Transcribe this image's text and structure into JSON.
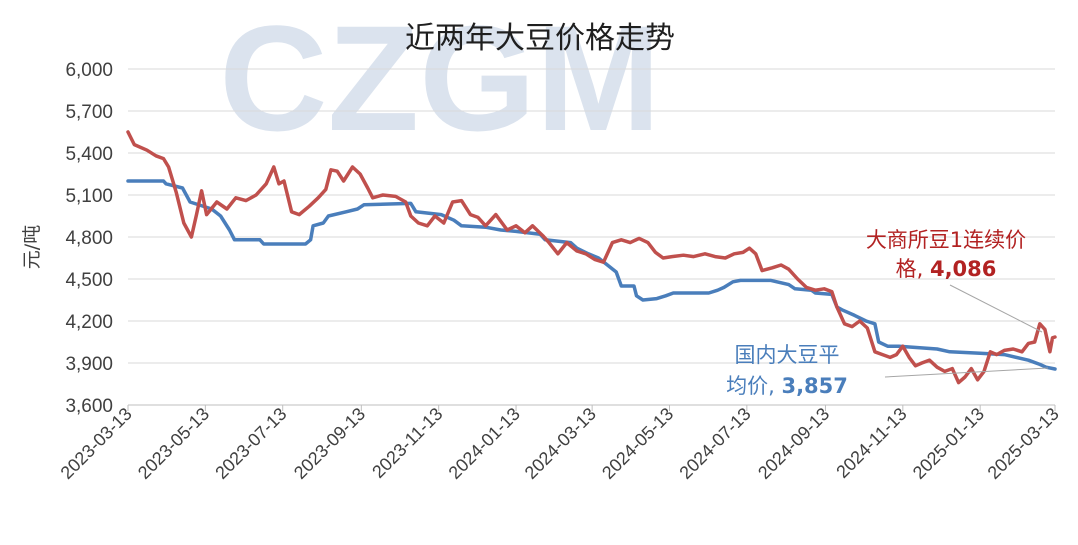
{
  "watermark": "CZGM",
  "chart_data": {
    "type": "line",
    "title": "近两年大豆价格走势",
    "ylabel": "元/吨",
    "ylim": [
      3600,
      6000
    ],
    "yticks": [
      "3,600",
      "3,900",
      "4,200",
      "4,500",
      "4,800",
      "5,100",
      "5,400",
      "5,700",
      "6,000"
    ],
    "grid": true,
    "x_ticks": [
      "2023-03-13",
      "2023-05-13",
      "2023-07-13",
      "2023-09-13",
      "2023-11-13",
      "2024-01-13",
      "2024-03-13",
      "2024-05-13",
      "2024-07-13",
      "2024-09-13",
      "2024-11-13",
      "2025-01-13",
      "2025-03-13"
    ],
    "x_range": [
      "2023-03-13",
      "2025-03-13"
    ],
    "annotations": [
      {
        "line1": "大商所豆1连续价",
        "line2_prefix": "格, ",
        "value_text": "4,086",
        "color": "#b22222"
      },
      {
        "line1": "国内大豆平",
        "line2_prefix": "均价, ",
        "value_text": "3,857",
        "color": "#4a7ebb"
      }
    ],
    "series": [
      {
        "color": "#4a7ebb",
        "points": [
          [
            "2023-03-13",
            5200
          ],
          [
            "2023-04-10",
            5200
          ],
          [
            "2023-04-12",
            5180
          ],
          [
            "2023-04-25",
            5150
          ],
          [
            "2023-05-01",
            5050
          ],
          [
            "2023-05-18",
            5000
          ],
          [
            "2023-05-25",
            4950
          ],
          [
            "2023-06-01",
            4850
          ],
          [
            "2023-06-05",
            4780
          ],
          [
            "2023-06-25",
            4780
          ],
          [
            "2023-06-28",
            4750
          ],
          [
            "2023-07-31",
            4750
          ],
          [
            "2023-08-04",
            4780
          ],
          [
            "2023-08-06",
            4880
          ],
          [
            "2023-08-14",
            4900
          ],
          [
            "2023-08-18",
            4950
          ],
          [
            "2023-09-01",
            4980
          ],
          [
            "2023-09-10",
            5000
          ],
          [
            "2023-09-15",
            5030
          ],
          [
            "2023-10-22",
            5040
          ],
          [
            "2023-10-26",
            4980
          ],
          [
            "2023-11-15",
            4960
          ],
          [
            "2023-11-25",
            4920
          ],
          [
            "2023-12-01",
            4880
          ],
          [
            "2023-12-20",
            4870
          ],
          [
            "2024-01-01",
            4850
          ],
          [
            "2024-01-13",
            4840
          ],
          [
            "2024-02-01",
            4820
          ],
          [
            "2024-02-05",
            4780
          ],
          [
            "2024-02-25",
            4760
          ],
          [
            "2024-03-01",
            4720
          ],
          [
            "2024-03-10",
            4680
          ],
          [
            "2024-03-18",
            4650
          ],
          [
            "2024-03-25",
            4600
          ],
          [
            "2024-04-01",
            4550
          ],
          [
            "2024-04-05",
            4450
          ],
          [
            "2024-04-15",
            4450
          ],
          [
            "2024-04-17",
            4380
          ],
          [
            "2024-04-22",
            4350
          ],
          [
            "2024-05-03",
            4360
          ],
          [
            "2024-05-10",
            4380
          ],
          [
            "2024-05-16",
            4400
          ],
          [
            "2024-06-13",
            4400
          ],
          [
            "2024-06-20",
            4420
          ],
          [
            "2024-06-25",
            4440
          ],
          [
            "2024-07-02",
            4480
          ],
          [
            "2024-07-08",
            4490
          ],
          [
            "2024-08-01",
            4490
          ],
          [
            "2024-08-15",
            4460
          ],
          [
            "2024-08-20",
            4430
          ],
          [
            "2024-09-02",
            4420
          ],
          [
            "2024-09-05",
            4400
          ],
          [
            "2024-09-18",
            4390
          ],
          [
            "2024-09-22",
            4300
          ],
          [
            "2024-09-26",
            4280
          ],
          [
            "2024-10-06",
            4240
          ],
          [
            "2024-10-15",
            4200
          ],
          [
            "2024-10-22",
            4180
          ],
          [
            "2024-10-25",
            4050
          ],
          [
            "2024-11-01",
            4020
          ],
          [
            "2024-11-10",
            4020
          ],
          [
            "2024-11-25",
            4010
          ],
          [
            "2024-12-10",
            4000
          ],
          [
            "2024-12-20",
            3980
          ],
          [
            "2025-01-13",
            3970
          ],
          [
            "2025-02-01",
            3960
          ],
          [
            "2025-02-20",
            3920
          ],
          [
            "2025-03-01",
            3890
          ],
          [
            "2025-03-06",
            3870
          ],
          [
            "2025-03-13",
            3857
          ]
        ]
      },
      {
        "color": "#c0504d",
        "points": [
          [
            "2023-03-13",
            5550
          ],
          [
            "2023-03-18",
            5460
          ],
          [
            "2023-03-28",
            5420
          ],
          [
            "2023-04-04",
            5380
          ],
          [
            "2023-04-10",
            5360
          ],
          [
            "2023-04-14",
            5300
          ],
          [
            "2023-04-20",
            5120
          ],
          [
            "2023-04-26",
            4900
          ],
          [
            "2023-05-02",
            4800
          ],
          [
            "2023-05-06",
            4960
          ],
          [
            "2023-05-10",
            5130
          ],
          [
            "2023-05-14",
            4960
          ],
          [
            "2023-05-22",
            5050
          ],
          [
            "2023-05-30",
            5000
          ],
          [
            "2023-06-06",
            5080
          ],
          [
            "2023-06-14",
            5060
          ],
          [
            "2023-06-22",
            5100
          ],
          [
            "2023-06-30",
            5180
          ],
          [
            "2023-07-06",
            5300
          ],
          [
            "2023-07-10",
            5180
          ],
          [
            "2023-07-14",
            5200
          ],
          [
            "2023-07-20",
            4980
          ],
          [
            "2023-07-26",
            4960
          ],
          [
            "2023-08-03",
            5020
          ],
          [
            "2023-08-10",
            5080
          ],
          [
            "2023-08-16",
            5140
          ],
          [
            "2023-08-20",
            5280
          ],
          [
            "2023-08-25",
            5270
          ],
          [
            "2023-08-30",
            5200
          ],
          [
            "2023-09-06",
            5300
          ],
          [
            "2023-09-12",
            5250
          ],
          [
            "2023-09-18",
            5150
          ],
          [
            "2023-09-22",
            5080
          ],
          [
            "2023-09-30",
            5100
          ],
          [
            "2023-10-10",
            5090
          ],
          [
            "2023-10-18",
            5050
          ],
          [
            "2023-10-22",
            4950
          ],
          [
            "2023-10-28",
            4900
          ],
          [
            "2023-11-04",
            4880
          ],
          [
            "2023-11-10",
            4950
          ],
          [
            "2023-11-17",
            4900
          ],
          [
            "2023-11-24",
            5050
          ],
          [
            "2023-12-01",
            5060
          ],
          [
            "2023-12-08",
            4960
          ],
          [
            "2023-12-14",
            4940
          ],
          [
            "2023-12-20",
            4880
          ],
          [
            "2023-12-28",
            4960
          ],
          [
            "2024-01-06",
            4850
          ],
          [
            "2024-01-13",
            4880
          ],
          [
            "2024-01-20",
            4830
          ],
          [
            "2024-01-26",
            4880
          ],
          [
            "2024-02-03",
            4810
          ],
          [
            "2024-02-08",
            4760
          ],
          [
            "2024-02-15",
            4680
          ],
          [
            "2024-02-22",
            4760
          ],
          [
            "2024-03-01",
            4700
          ],
          [
            "2024-03-08",
            4680
          ],
          [
            "2024-03-15",
            4640
          ],
          [
            "2024-03-22",
            4620
          ],
          [
            "2024-03-29",
            4760
          ],
          [
            "2024-04-05",
            4780
          ],
          [
            "2024-04-12",
            4760
          ],
          [
            "2024-04-19",
            4790
          ],
          [
            "2024-04-26",
            4760
          ],
          [
            "2024-05-02",
            4690
          ],
          [
            "2024-05-08",
            4650
          ],
          [
            "2024-05-15",
            4660
          ],
          [
            "2024-05-24",
            4670
          ],
          [
            "2024-06-01",
            4660
          ],
          [
            "2024-06-10",
            4680
          ],
          [
            "2024-06-18",
            4660
          ],
          [
            "2024-06-26",
            4650
          ],
          [
            "2024-07-03",
            4680
          ],
          [
            "2024-07-10",
            4690
          ],
          [
            "2024-07-15",
            4720
          ],
          [
            "2024-07-20",
            4680
          ],
          [
            "2024-07-25",
            4560
          ],
          [
            "2024-08-02",
            4580
          ],
          [
            "2024-08-09",
            4600
          ],
          [
            "2024-08-15",
            4570
          ],
          [
            "2024-08-22",
            4500
          ],
          [
            "2024-08-29",
            4440
          ],
          [
            "2024-09-05",
            4420
          ],
          [
            "2024-09-12",
            4430
          ],
          [
            "2024-09-18",
            4410
          ],
          [
            "2024-09-22",
            4300
          ],
          [
            "2024-09-28",
            4180
          ],
          [
            "2024-10-04",
            4160
          ],
          [
            "2024-10-10",
            4200
          ],
          [
            "2024-10-16",
            4150
          ],
          [
            "2024-10-22",
            3980
          ],
          [
            "2024-10-28",
            3960
          ],
          [
            "2024-11-03",
            3940
          ],
          [
            "2024-11-08",
            3960
          ],
          [
            "2024-11-13",
            4020
          ],
          [
            "2024-11-18",
            3940
          ],
          [
            "2024-11-23",
            3880
          ],
          [
            "2024-11-28",
            3900
          ],
          [
            "2024-12-04",
            3920
          ],
          [
            "2024-12-10",
            3870
          ],
          [
            "2024-12-16",
            3840
          ],
          [
            "2024-12-22",
            3860
          ],
          [
            "2024-12-27",
            3760
          ],
          [
            "2025-01-01",
            3800
          ],
          [
            "2025-01-06",
            3860
          ],
          [
            "2025-01-11",
            3780
          ],
          [
            "2025-01-16",
            3840
          ],
          [
            "2025-01-21",
            3980
          ],
          [
            "2025-01-26",
            3960
          ],
          [
            "2025-02-01",
            3990
          ],
          [
            "2025-02-08",
            4000
          ],
          [
            "2025-02-15",
            3980
          ],
          [
            "2025-02-20",
            4040
          ],
          [
            "2025-02-25",
            4050
          ],
          [
            "2025-03-01",
            4180
          ],
          [
            "2025-03-05",
            4140
          ],
          [
            "2025-03-09",
            3980
          ],
          [
            "2025-03-11",
            4080
          ],
          [
            "2025-03-13",
            4086
          ]
        ]
      }
    ]
  }
}
